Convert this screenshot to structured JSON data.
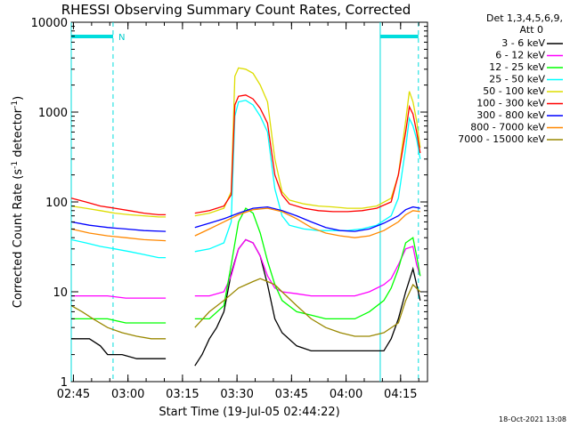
{
  "chart_data": {
    "type": "line",
    "title": "RHESSI Observing Summary Count Rates, Corrected",
    "xlabel": "Start Time (19-Jul-05 02:44:22)",
    "ylabel_main": "Corrected Count Rate (s",
    "ylabel_sup1": "-1",
    "ylabel_mid": " detector",
    "ylabel_sup2": "-1",
    "ylabel_end": ")",
    "y_scale": "log",
    "ylim": [
      1,
      10000
    ],
    "xlim_minutes": [
      0,
      98
    ],
    "x_tick_labels": [
      "02:45",
      "03:00",
      "03:15",
      "03:30",
      "03:45",
      "04:00",
      "04:15"
    ],
    "x_tick_minutes": [
      0.6,
      15.6,
      30.6,
      45.6,
      60.6,
      75.6,
      90.6
    ],
    "y_tick_labels": [
      "1",
      "10",
      "100",
      "1000",
      "10000"
    ],
    "y_tick_values": [
      1,
      10,
      100,
      1000,
      10000
    ],
    "legend_header": [
      "Det 1,3,4,5,6,9,",
      "Att 0"
    ],
    "legend_position": "right-outside",
    "night_marker_label": "N",
    "data_gap_minutes": [
      26,
      34
    ],
    "attenuator_intervals": [
      {
        "start": 0,
        "end": 11.5
      },
      {
        "start": 85,
        "end": 95.5
      }
    ],
    "series": [
      {
        "name": "3 - 6 keV",
        "color": "#000000",
        "x": [
          0,
          5,
          8,
          10,
          14,
          18,
          22,
          26,
          34,
          36,
          38,
          40,
          42,
          44,
          46,
          48,
          50,
          52,
          54,
          56,
          58,
          62,
          66,
          70,
          74,
          78,
          82,
          86,
          88,
          90,
          92,
          94,
          95,
          96
        ],
        "y": [
          3,
          3,
          2.5,
          2,
          2,
          1.8,
          1.8,
          1.8,
          1.5,
          2,
          3,
          4,
          6,
          16,
          30,
          38,
          35,
          25,
          12,
          5,
          3.5,
          2.5,
          2.2,
          2.2,
          2.2,
          2.2,
          2.2,
          2.2,
          3,
          5,
          10,
          18,
          12,
          8
        ]
      },
      {
        "name": "6 - 12 keV",
        "color": "#ff00ff",
        "x": [
          0,
          5,
          10,
          15,
          20,
          26,
          34,
          38,
          42,
          44,
          46,
          48,
          50,
          52,
          54,
          56,
          58,
          62,
          66,
          70,
          74,
          78,
          82,
          86,
          88,
          90,
          92,
          94,
          95,
          96
        ],
        "y": [
          9,
          9,
          9,
          8.5,
          8.5,
          8.5,
          9,
          9,
          10,
          15,
          30,
          38,
          35,
          25,
          15,
          11,
          10,
          9.5,
          9,
          9,
          9,
          9,
          10,
          12,
          14,
          20,
          30,
          32,
          20,
          15
        ]
      },
      {
        "name": "12 - 25 keV",
        "color": "#00ff00",
        "x": [
          0,
          5,
          10,
          15,
          20,
          26,
          34,
          38,
          42,
          44,
          46,
          48,
          50,
          52,
          54,
          56,
          58,
          62,
          66,
          70,
          74,
          78,
          82,
          86,
          88,
          90,
          92,
          94,
          95,
          96
        ],
        "y": [
          5,
          5,
          5,
          4.5,
          4.5,
          4.5,
          5,
          5,
          7,
          20,
          60,
          85,
          75,
          45,
          22,
          12,
          8,
          6,
          5.5,
          5,
          5,
          5,
          6,
          8,
          11,
          18,
          35,
          40,
          25,
          15
        ]
      },
      {
        "name": "25 - 50 keV",
        "color": "#00ffff",
        "x": [
          0,
          4,
          8,
          12,
          16,
          20,
          24,
          26,
          34,
          38,
          42,
          44,
          45,
          46,
          48,
          50,
          52,
          54,
          56,
          58,
          60,
          64,
          68,
          72,
          76,
          80,
          84,
          88,
          90,
          92,
          93,
          94,
          95,
          96
        ],
        "y": [
          38,
          35,
          32,
          30,
          28,
          26,
          24,
          24,
          28,
          30,
          35,
          60,
          900,
          1300,
          1350,
          1200,
          900,
          600,
          140,
          70,
          55,
          50,
          48,
          48,
          48,
          50,
          55,
          70,
          110,
          400,
          850,
          700,
          500,
          300
        ]
      },
      {
        "name": "50 - 100 keV",
        "color": "#dddd00",
        "x": [
          0,
          4,
          8,
          12,
          16,
          20,
          24,
          26,
          34,
          38,
          42,
          44,
          45,
          46,
          48,
          50,
          52,
          54,
          56,
          58,
          60,
          64,
          68,
          72,
          76,
          80,
          84,
          88,
          90,
          92,
          93,
          94,
          95,
          96
        ],
        "y": [
          90,
          85,
          80,
          75,
          72,
          70,
          68,
          68,
          70,
          75,
          85,
          130,
          2500,
          3100,
          3000,
          2700,
          2000,
          1300,
          300,
          130,
          105,
          95,
          90,
          88,
          85,
          85,
          90,
          110,
          200,
          800,
          1700,
          1300,
          800,
          400
        ]
      },
      {
        "name": "100 - 300 keV",
        "color": "#ff0000",
        "x": [
          0,
          4,
          8,
          12,
          16,
          20,
          24,
          26,
          34,
          38,
          42,
          44,
          45,
          46,
          48,
          50,
          52,
          54,
          56,
          58,
          60,
          64,
          68,
          72,
          76,
          80,
          84,
          88,
          90,
          92,
          93,
          94,
          95,
          96
        ],
        "y": [
          110,
          100,
          90,
          85,
          80,
          75,
          72,
          72,
          75,
          80,
          90,
          120,
          1200,
          1500,
          1550,
          1400,
          1100,
          750,
          200,
          120,
          95,
          85,
          80,
          78,
          78,
          80,
          85,
          100,
          200,
          600,
          1150,
          950,
          600,
          350
        ]
      },
      {
        "name": "300 - 800 keV",
        "color": "#0000ff",
        "x": [
          0,
          5,
          10,
          15,
          20,
          26,
          34,
          38,
          42,
          46,
          50,
          54,
          58,
          62,
          66,
          70,
          74,
          78,
          82,
          86,
          90,
          92,
          94,
          96
        ],
        "y": [
          60,
          55,
          52,
          50,
          48,
          47,
          52,
          58,
          65,
          75,
          85,
          88,
          80,
          70,
          60,
          52,
          48,
          47,
          50,
          58,
          70,
          82,
          88,
          85
        ]
      },
      {
        "name": "800 - 7000 keV",
        "color": "#ff8800",
        "x": [
          0,
          5,
          10,
          15,
          20,
          26,
          34,
          38,
          42,
          46,
          50,
          54,
          58,
          62,
          66,
          70,
          74,
          78,
          82,
          86,
          90,
          92,
          94,
          96
        ],
        "y": [
          50,
          45,
          42,
          40,
          38,
          37,
          42,
          50,
          60,
          72,
          82,
          85,
          78,
          65,
          52,
          45,
          42,
          40,
          42,
          48,
          60,
          72,
          80,
          78
        ]
      },
      {
        "name": "7000 - 15000 keV",
        "color": "#998800",
        "x": [
          0,
          3,
          6,
          10,
          14,
          18,
          22,
          26,
          34,
          38,
          42,
          46,
          50,
          52,
          54,
          56,
          58,
          62,
          66,
          70,
          74,
          78,
          82,
          86,
          90,
          92,
          94,
          96
        ],
        "y": [
          7,
          6,
          5,
          4,
          3.5,
          3.2,
          3,
          3,
          4,
          6,
          8,
          11,
          13,
          14,
          13,
          12,
          10,
          7,
          5,
          4,
          3.5,
          3.2,
          3.2,
          3.5,
          4.5,
          8,
          12,
          10
        ]
      }
    ]
  },
  "footer_timestamp": "18-Oct-2021 13:08"
}
